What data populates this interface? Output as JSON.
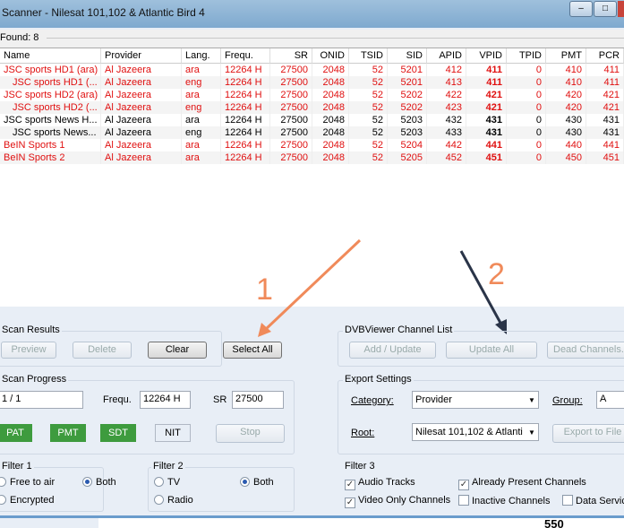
{
  "window": {
    "title": "Scanner - Nilesat 101,102 & Atlantic Bird 4",
    "controls": [
      "minimize",
      "maximize"
    ]
  },
  "found": "Found:  8",
  "table": {
    "columns": [
      "Name",
      "Provider",
      "Lang.",
      "Frequ.",
      "SR",
      "ONID",
      "TSID",
      "SID",
      "APID",
      "VPID",
      "TPID",
      "PMT",
      "PCR"
    ],
    "rows": [
      {
        "highlight": true,
        "indent": false,
        "cells": [
          "JSC sports HD1 (ara)",
          "Al Jazeera",
          "ara",
          "12264 H",
          "27500",
          "2048",
          "52",
          "5201",
          "412",
          "411",
          "0",
          "410",
          "411"
        ]
      },
      {
        "highlight": true,
        "indent": true,
        "cells": [
          "JSC sports HD1 (...",
          "Al Jazeera",
          "eng",
          "12264 H",
          "27500",
          "2048",
          "52",
          "5201",
          "413",
          "411",
          "0",
          "410",
          "411"
        ]
      },
      {
        "highlight": true,
        "indent": false,
        "cells": [
          "JSC sports HD2 (ara)",
          "Al Jazeera",
          "ara",
          "12264 H",
          "27500",
          "2048",
          "52",
          "5202",
          "422",
          "421",
          "0",
          "420",
          "421"
        ]
      },
      {
        "highlight": true,
        "indent": true,
        "cells": [
          "JSC sports HD2 (...",
          "Al Jazeera",
          "eng",
          "12264 H",
          "27500",
          "2048",
          "52",
          "5202",
          "423",
          "421",
          "0",
          "420",
          "421"
        ]
      },
      {
        "highlight": false,
        "indent": false,
        "cells": [
          "JSC sports News H...",
          "Al Jazeera",
          "ara",
          "12264 H",
          "27500",
          "2048",
          "52",
          "5203",
          "432",
          "431",
          "0",
          "430",
          "431"
        ]
      },
      {
        "highlight": false,
        "indent": true,
        "cells": [
          "JSC sports News...",
          "Al Jazeera",
          "eng",
          "12264 H",
          "27500",
          "2048",
          "52",
          "5203",
          "433",
          "431",
          "0",
          "430",
          "431"
        ]
      },
      {
        "highlight": true,
        "indent": false,
        "cells": [
          "BeIN Sports 1",
          "Al Jazeera",
          "ara",
          "12264 H",
          "27500",
          "2048",
          "52",
          "5204",
          "442",
          "441",
          "0",
          "440",
          "441"
        ]
      },
      {
        "highlight": true,
        "indent": false,
        "cells": [
          "BeIN Sports 2",
          "Al Jazeera",
          "ara",
          "12264 H",
          "27500",
          "2048",
          "52",
          "5205",
          "452",
          "451",
          "0",
          "450",
          "451"
        ]
      }
    ]
  },
  "annotations": {
    "one": "1",
    "two": "2",
    "arrow1_color": "#f08a5a",
    "arrow2_color": "#2a3448"
  },
  "scan_results": {
    "title": "Scan Results",
    "preview": "Preview",
    "delete": "Delete",
    "clear": "Clear",
    "select_all": "Select All"
  },
  "channel_list": {
    "title": "DVBViewer Channel List",
    "add_update": "Add / Update",
    "update_all": "Update All",
    "dead_channels": "Dead Channels..."
  },
  "scan_progress": {
    "title": "Scan Progress",
    "progress": "1 / 1",
    "frequ_label": "Frequ.",
    "frequ": "12264 H",
    "sr_label": "SR",
    "sr": "27500",
    "pat": "PAT",
    "pmt": "PMT",
    "sdt": "SDT",
    "nit": "NIT",
    "stop": "Stop"
  },
  "export": {
    "title": "Export Settings",
    "category_label": "Category:",
    "category": "Provider",
    "group_label": "Group:",
    "group": "A",
    "root_label": "Root:",
    "root": "Nilesat 101,102 & Atlanti",
    "export_file": "Export to File"
  },
  "filter1": {
    "title": "Filter 1",
    "fta": "Free to air",
    "both": "Both",
    "enc": "Encrypted",
    "selected": "Both"
  },
  "filter2": {
    "title": "Filter 2",
    "tv": "TV",
    "both": "Both",
    "radio": "Radio",
    "selected": "Both"
  },
  "filter3": {
    "title": "Filter 3",
    "items": [
      {
        "label": "Audio Tracks",
        "checked": true
      },
      {
        "label": "Already Present Channels",
        "checked": true
      },
      {
        "label": "Video Only Channels",
        "checked": true
      },
      {
        "label": "Inactive Channels",
        "checked": false
      },
      {
        "label": "Data Servic",
        "checked": false
      }
    ]
  },
  "footer_text": "550"
}
